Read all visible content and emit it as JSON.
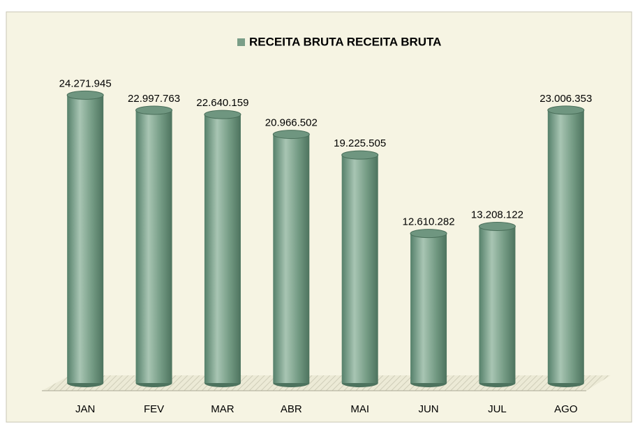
{
  "chart_data": {
    "type": "bar",
    "categories": [
      "JAN",
      "FEV",
      "MAR",
      "ABR",
      "MAI",
      "JUN",
      "JUL",
      "AGO"
    ],
    "series": [
      {
        "name": "RECEITA BRUTA RECEITA BRUTA",
        "color": "#7a9e88",
        "values": [
          24271945,
          22997763,
          22640159,
          20966502,
          19225505,
          12610282,
          13208122,
          23006353
        ],
        "value_labels": [
          "24.271.945",
          "22.997.763",
          "22.640.159",
          "20.966.502",
          "19.225.505",
          "12.610.282",
          "13.208.122",
          "23.006.353"
        ]
      }
    ],
    "ylim": [
      0,
      25000000
    ],
    "legend": "top"
  }
}
